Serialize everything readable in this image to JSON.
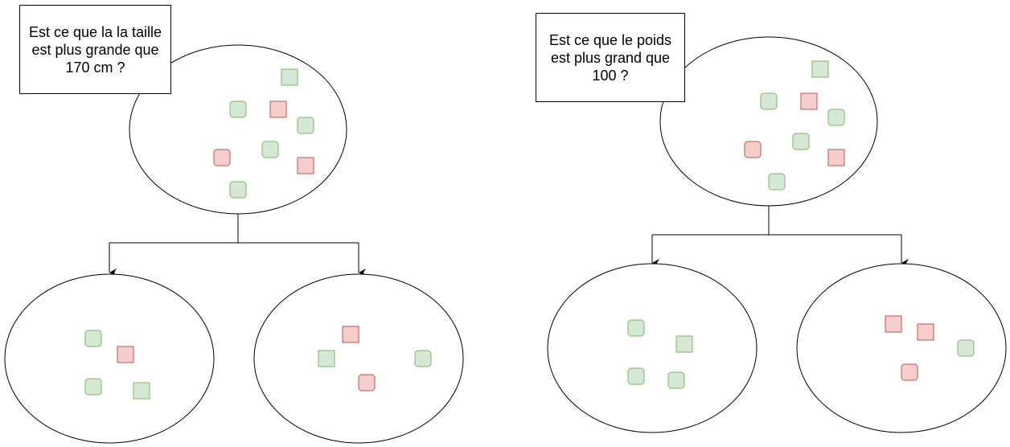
{
  "colors": {
    "green_fill": "#d5e8d4",
    "green_stroke": "#82b366",
    "red_fill": "#f8cecc",
    "red_stroke": "#b85450",
    "line": "#000000"
  },
  "trees": [
    {
      "question": "Est ce que la la taille est plus grande que 170 cm ?",
      "root": {
        "items": [
          {
            "color": "green",
            "shape": "square"
          },
          {
            "color": "green",
            "shape": "rounded"
          },
          {
            "color": "red",
            "shape": "square"
          },
          {
            "color": "green",
            "shape": "rounded"
          },
          {
            "color": "green",
            "shape": "rounded"
          },
          {
            "color": "red",
            "shape": "rounded"
          },
          {
            "color": "red",
            "shape": "square"
          },
          {
            "color": "green",
            "shape": "rounded"
          }
        ]
      },
      "children": [
        {
          "items": [
            {
              "color": "green",
              "shape": "rounded"
            },
            {
              "color": "red",
              "shape": "square"
            },
            {
              "color": "green",
              "shape": "rounded"
            },
            {
              "color": "green",
              "shape": "square"
            }
          ]
        },
        {
          "items": [
            {
              "color": "red",
              "shape": "square"
            },
            {
              "color": "green",
              "shape": "square"
            },
            {
              "color": "green",
              "shape": "rounded"
            },
            {
              "color": "red",
              "shape": "rounded"
            }
          ]
        }
      ]
    },
    {
      "question": "Est ce que le poids est plus grand que 100 ?",
      "root": {
        "items": [
          {
            "color": "green",
            "shape": "square"
          },
          {
            "color": "green",
            "shape": "rounded"
          },
          {
            "color": "red",
            "shape": "square"
          },
          {
            "color": "green",
            "shape": "rounded"
          },
          {
            "color": "green",
            "shape": "rounded"
          },
          {
            "color": "red",
            "shape": "rounded"
          },
          {
            "color": "red",
            "shape": "square"
          },
          {
            "color": "green",
            "shape": "rounded"
          }
        ]
      },
      "children": [
        {
          "items": [
            {
              "color": "green",
              "shape": "rounded"
            },
            {
              "color": "green",
              "shape": "square"
            },
            {
              "color": "green",
              "shape": "rounded"
            },
            {
              "color": "green",
              "shape": "rounded"
            }
          ]
        },
        {
          "items": [
            {
              "color": "red",
              "shape": "square"
            },
            {
              "color": "red",
              "shape": "square"
            },
            {
              "color": "green",
              "shape": "rounded"
            },
            {
              "color": "red",
              "shape": "rounded"
            }
          ]
        }
      ]
    }
  ]
}
